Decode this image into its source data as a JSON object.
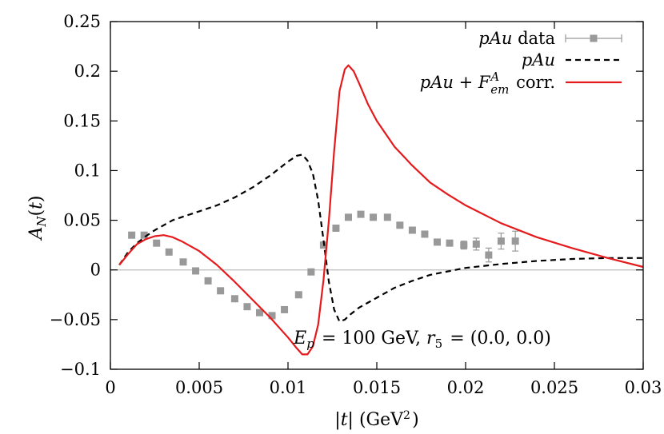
{
  "chart_data": {
    "type": "line",
    "xlabel": "|t| (GeV²)",
    "ylabel": "A_N(t)",
    "xlim": [
      0,
      0.03
    ],
    "ylim": [
      -0.1,
      0.25
    ],
    "x_ticks": [
      "0",
      "0.005",
      "0.01",
      "0.015",
      "0.02",
      "0.025",
      "0.03"
    ],
    "x_tick_values": [
      0,
      0.005,
      0.01,
      0.015,
      0.02,
      0.025,
      0.03
    ],
    "y_ticks": [
      "−0.1",
      "−0.05",
      "0",
      "0.05",
      "0.1",
      "0.15",
      "0.2",
      "0.25"
    ],
    "y_tick_values": [
      -0.1,
      -0.05,
      0,
      0.05,
      0.1,
      0.15,
      0.2,
      0.25
    ],
    "zero_line": true,
    "grid": false,
    "legend_position": "top-right",
    "annotation": "E_p = 100 GeV, r_5 = (0.0, 0.0)",
    "series": [
      {
        "name": "pAu data",
        "kind": "points",
        "color": "#999999",
        "x": [
          0.0012,
          0.0019,
          0.0026,
          0.0033,
          0.0041,
          0.0048,
          0.0055,
          0.0062,
          0.007,
          0.0077,
          0.0084,
          0.0091,
          0.0098,
          0.0106,
          0.0113,
          0.012,
          0.0127,
          0.0134,
          0.0141,
          0.0148,
          0.0156,
          0.0163,
          0.017,
          0.0177,
          0.0184,
          0.0191,
          0.0199,
          0.0206,
          0.0213,
          0.022,
          0.0228
        ],
        "y": [
          0.035,
          0.035,
          0.027,
          0.018,
          0.008,
          -0.001,
          -0.011,
          -0.021,
          -0.029,
          -0.037,
          -0.043,
          -0.046,
          -0.04,
          -0.025,
          -0.002,
          0.025,
          0.042,
          0.053,
          0.056,
          0.053,
          0.053,
          0.045,
          0.04,
          0.036,
          0.028,
          0.027,
          0.025,
          0.026,
          0.015,
          0.029,
          0.029
        ],
        "err": [
          0,
          0,
          0,
          0,
          0,
          0,
          0,
          0,
          0,
          0,
          0,
          0,
          0,
          0,
          0,
          0,
          0,
          0,
          0,
          0,
          0,
          0,
          0,
          0,
          0,
          0,
          0.004,
          0.006,
          0.007,
          0.008,
          0.01
        ]
      },
      {
        "name": "pAu",
        "kind": "line",
        "dash": true,
        "color": "#000000",
        "x": [
          0.0005,
          0.001,
          0.0015,
          0.002,
          0.0025,
          0.003,
          0.0035,
          0.004,
          0.005,
          0.006,
          0.007,
          0.008,
          0.009,
          0.0095,
          0.01,
          0.0105,
          0.0108,
          0.0111,
          0.0114,
          0.0117,
          0.012,
          0.0123,
          0.0126,
          0.0129,
          0.0132,
          0.0135,
          0.014,
          0.015,
          0.016,
          0.017,
          0.018,
          0.02,
          0.022,
          0.024,
          0.026,
          0.028,
          0.03
        ],
        "y": [
          0.005,
          0.018,
          0.027,
          0.034,
          0.04,
          0.045,
          0.05,
          0.053,
          0.059,
          0.065,
          0.073,
          0.083,
          0.095,
          0.102,
          0.109,
          0.115,
          0.116,
          0.11,
          0.097,
          0.07,
          0.03,
          -0.012,
          -0.04,
          -0.052,
          -0.05,
          -0.045,
          -0.038,
          -0.028,
          -0.018,
          -0.011,
          -0.005,
          0.002,
          0.006,
          0.009,
          0.011,
          0.012,
          0.012
        ]
      },
      {
        "name": "pAu + F_em^A corr.",
        "kind": "line",
        "dash": false,
        "color": "#e41a1c",
        "x": [
          0.0005,
          0.001,
          0.0015,
          0.002,
          0.0025,
          0.003,
          0.0035,
          0.004,
          0.005,
          0.006,
          0.007,
          0.008,
          0.009,
          0.0095,
          0.01,
          0.0105,
          0.0108,
          0.0111,
          0.0114,
          0.0117,
          0.012,
          0.0123,
          0.0126,
          0.0129,
          0.0132,
          0.0134,
          0.0137,
          0.014,
          0.0145,
          0.015,
          0.016,
          0.017,
          0.018,
          0.019,
          0.02,
          0.022,
          0.024,
          0.026,
          0.028,
          0.03
        ],
        "y": [
          0.005,
          0.016,
          0.026,
          0.031,
          0.034,
          0.035,
          0.033,
          0.029,
          0.019,
          0.005,
          -0.012,
          -0.03,
          -0.048,
          -0.058,
          -0.068,
          -0.079,
          -0.085,
          -0.085,
          -0.077,
          -0.055,
          -0.01,
          0.05,
          0.12,
          0.18,
          0.202,
          0.206,
          0.2,
          0.188,
          0.167,
          0.15,
          0.124,
          0.105,
          0.088,
          0.076,
          0.065,
          0.047,
          0.033,
          0.022,
          0.012,
          0.003
        ]
      }
    ]
  }
}
